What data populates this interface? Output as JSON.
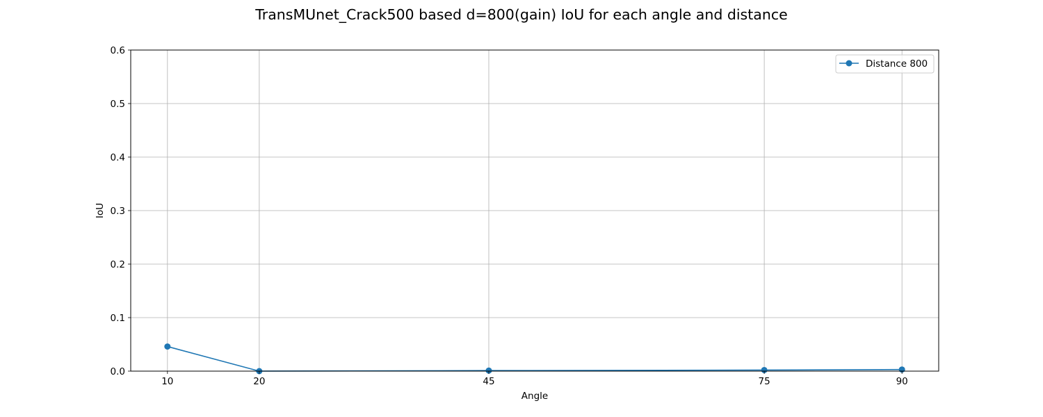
{
  "chart_data": {
    "type": "line",
    "title": "TransMUnet_Crack500 based d=800(gain) IoU for each angle and distance",
    "xlabel": "Angle",
    "ylabel": "IoU",
    "x": [
      10,
      20,
      45,
      75,
      90
    ],
    "xticks": [
      "10",
      "20",
      "45",
      "75",
      "90"
    ],
    "xlim": [
      6,
      94
    ],
    "ylim": [
      0,
      0.6
    ],
    "yticks": [
      "0.0",
      "0.1",
      "0.2",
      "0.3",
      "0.4",
      "0.5",
      "0.6"
    ],
    "grid": true,
    "legend_position": "top-right",
    "series": [
      {
        "name": "Distance 800",
        "color": "#1f77b4",
        "marker": "circle",
        "values": [
          0.046,
          0.0,
          0.001,
          0.002,
          0.003
        ]
      }
    ]
  }
}
